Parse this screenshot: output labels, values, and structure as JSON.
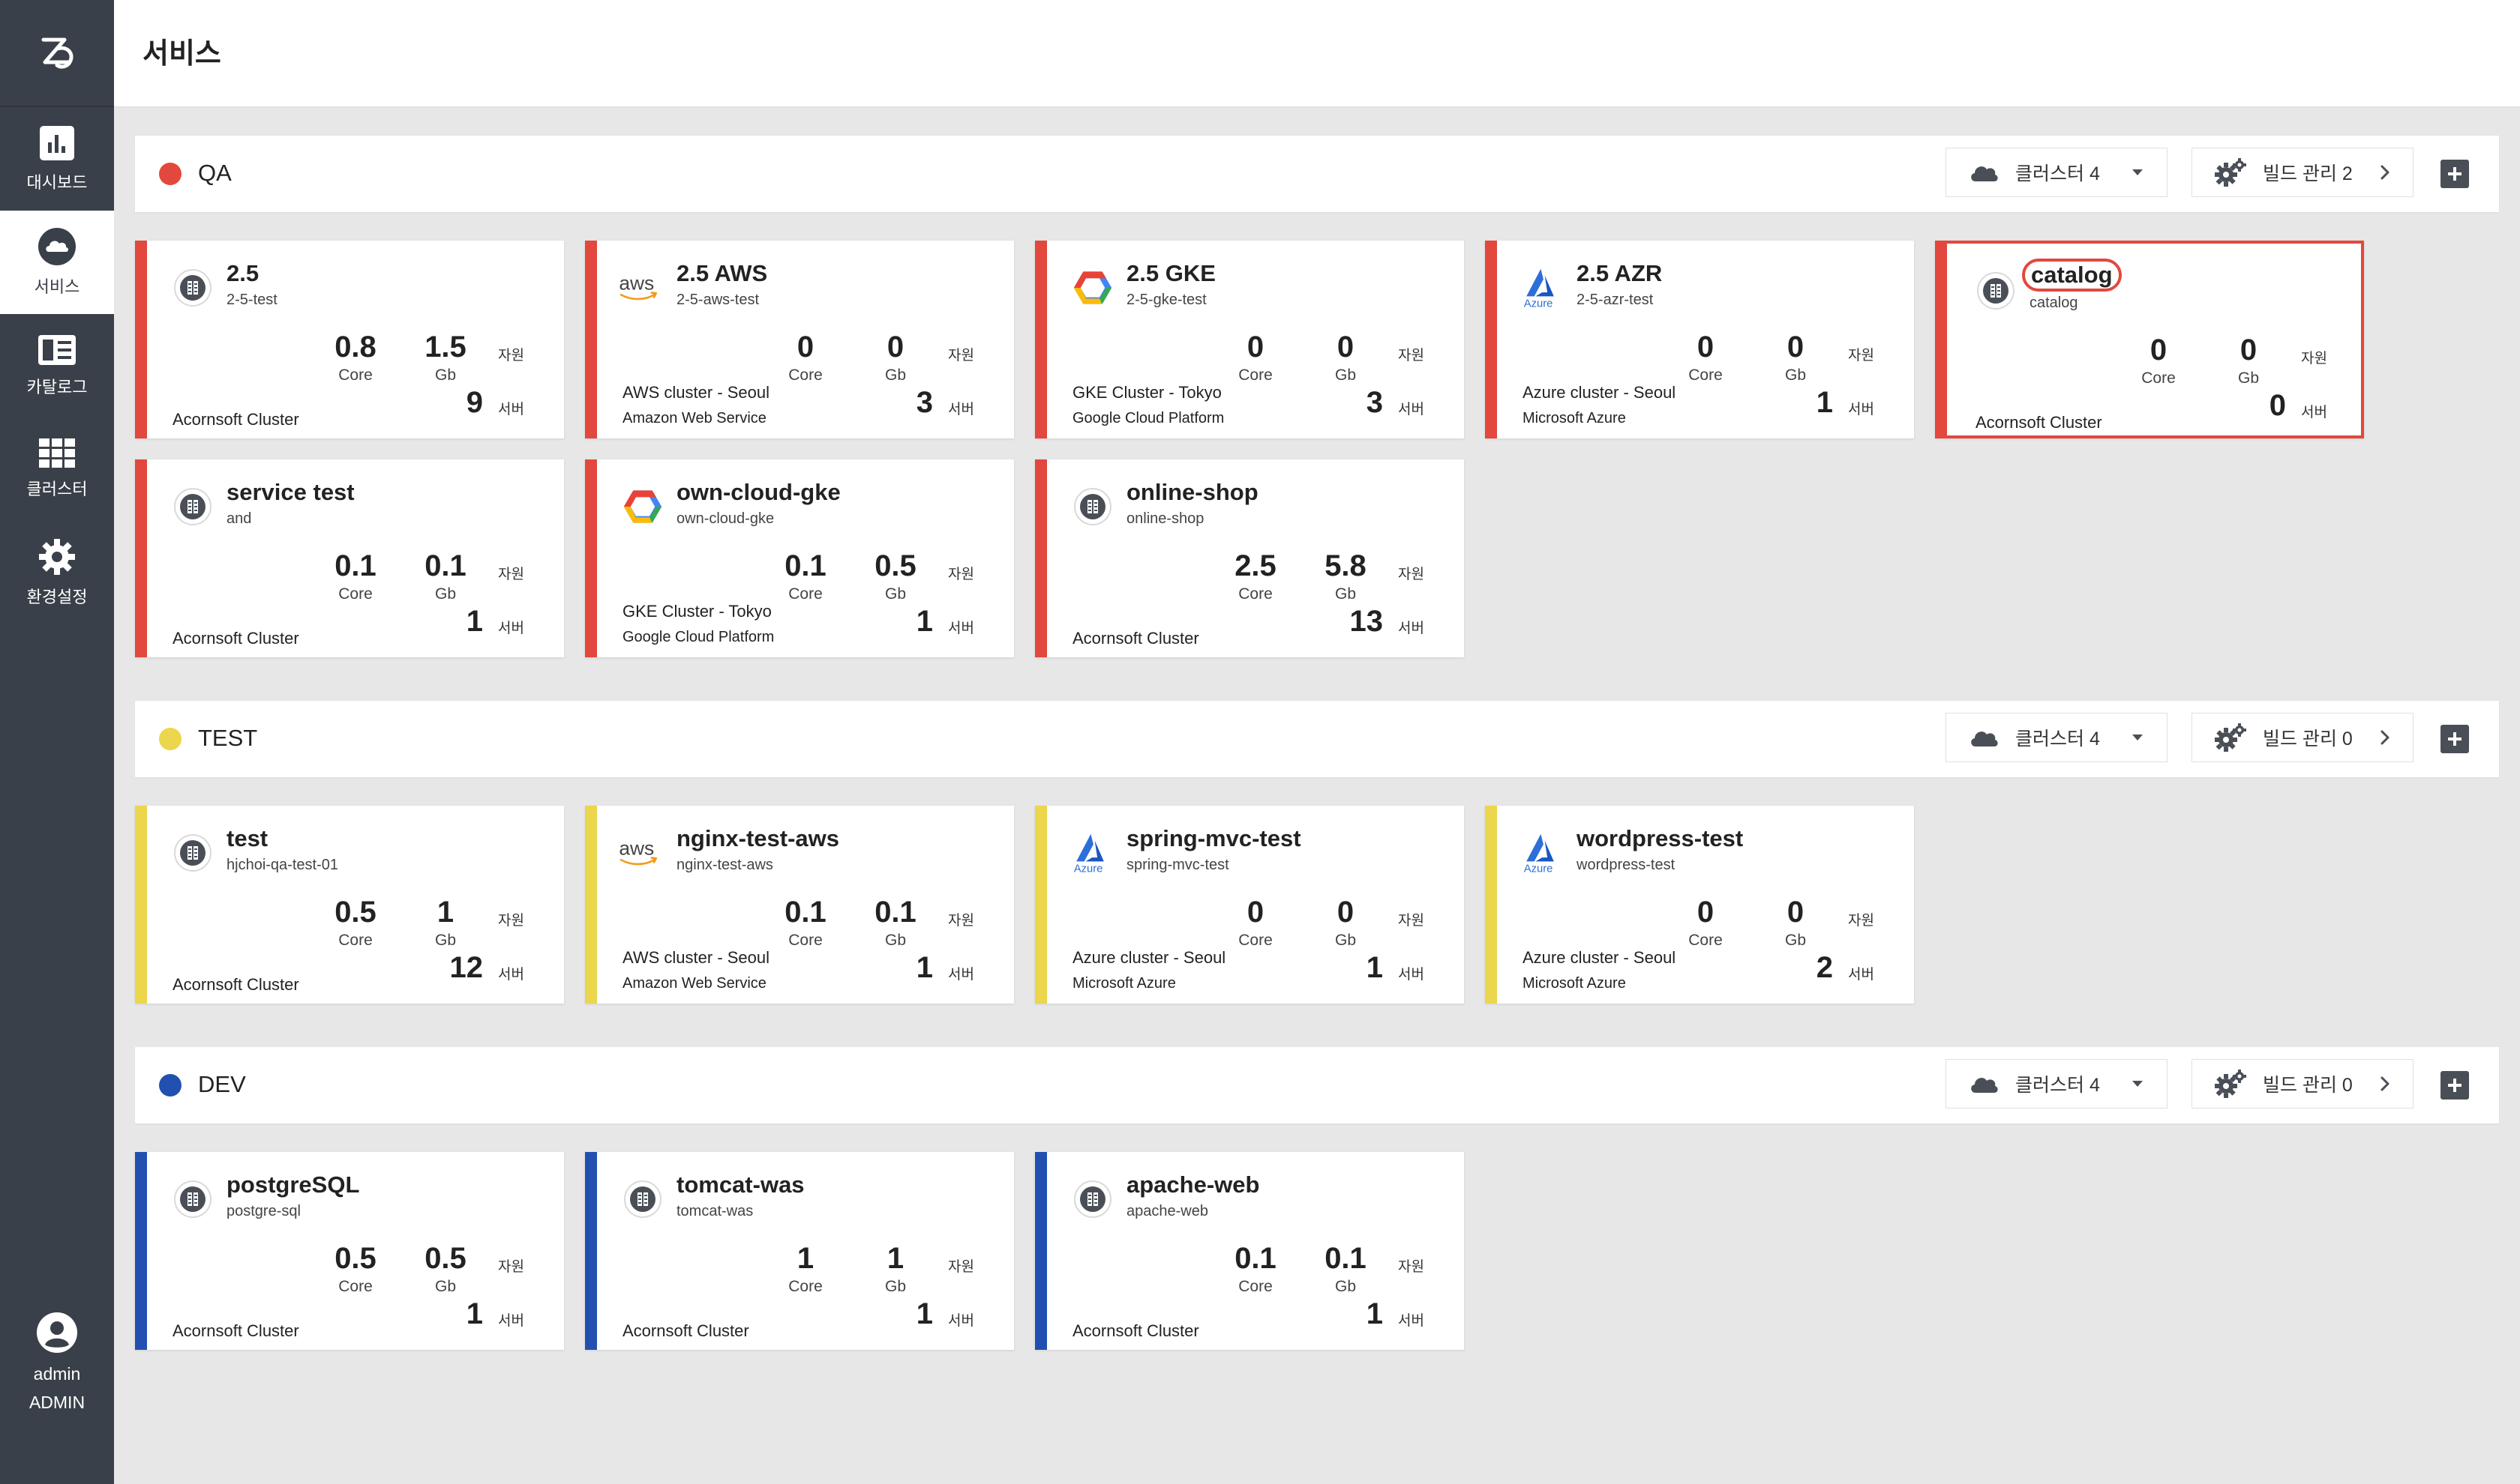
{
  "sidebar": {
    "items": [
      {
        "label": "대시보드",
        "icon": "bar-chart-icon"
      },
      {
        "label": "서비스",
        "icon": "cloud-icon"
      },
      {
        "label": "카탈로그",
        "icon": "catalog-icon"
      },
      {
        "label": "클러스터",
        "icon": "grid-icon"
      },
      {
        "label": "환경설정",
        "icon": "gear-icon"
      }
    ],
    "user": {
      "name": "admin",
      "role": "ADMIN"
    }
  },
  "header": {
    "title": "서비스"
  },
  "labels": {
    "core": "Core",
    "gb": "Gb",
    "resource": "자원",
    "server": "서버"
  },
  "colors": {
    "qa": "#e2483d",
    "test": "#ebd64c",
    "dev": "#2250b0"
  },
  "sections": [
    {
      "name": "QA",
      "cluster_label": "클러스터 4",
      "build_label": "빌드 관리 2",
      "cards": [
        {
          "name": "2.5",
          "id": "2-5-test",
          "core": "0.8",
          "gb": "1.5",
          "servers": "9",
          "cluster": "Acornsoft Cluster",
          "provider": "",
          "logo": "acornsoft"
        },
        {
          "name": "2.5 AWS",
          "id": "2-5-aws-test",
          "core": "0",
          "gb": "0",
          "servers": "3",
          "cluster": "AWS cluster - Seoul",
          "provider": "Amazon Web Service",
          "logo": "aws"
        },
        {
          "name": "2.5 GKE",
          "id": "2-5-gke-test",
          "core": "0",
          "gb": "0",
          "servers": "3",
          "cluster": "GKE Cluster - Tokyo",
          "provider": "Google Cloud Platform",
          "logo": "gcp"
        },
        {
          "name": "2.5 AZR",
          "id": "2-5-azr-test",
          "core": "0",
          "gb": "0",
          "servers": "1",
          "cluster": "Azure cluster - Seoul",
          "provider": "Microsoft Azure",
          "logo": "azure"
        },
        {
          "name": "catalog",
          "id": "catalog",
          "core": "0",
          "gb": "0",
          "servers": "0",
          "cluster": "Acornsoft Cluster",
          "provider": "",
          "logo": "acornsoft"
        },
        {
          "name": "service test",
          "id": "and",
          "core": "0.1",
          "gb": "0.1",
          "servers": "1",
          "cluster": "Acornsoft Cluster",
          "provider": "",
          "logo": "acornsoft"
        },
        {
          "name": "own-cloud-gke",
          "id": "own-cloud-gke",
          "core": "0.1",
          "gb": "0.5",
          "servers": "1",
          "cluster": "GKE Cluster - Tokyo",
          "provider": "Google Cloud Platform",
          "logo": "gcp"
        },
        {
          "name": "online-shop",
          "id": "online-shop",
          "core": "2.5",
          "gb": "5.8",
          "servers": "13",
          "cluster": "Acornsoft Cluster",
          "provider": "",
          "logo": "acornsoft"
        }
      ]
    },
    {
      "name": "TEST",
      "cluster_label": "클러스터 4",
      "build_label": "빌드 관리 0",
      "cards": [
        {
          "name": "test",
          "id": "hjchoi-qa-test-01",
          "core": "0.5",
          "gb": "1",
          "servers": "12",
          "cluster": "Acornsoft Cluster",
          "provider": "",
          "logo": "acornsoft"
        },
        {
          "name": "nginx-test-aws",
          "id": "nginx-test-aws",
          "core": "0.1",
          "gb": "0.1",
          "servers": "1",
          "cluster": "AWS cluster - Seoul",
          "provider": "Amazon Web Service",
          "logo": "aws"
        },
        {
          "name": "spring-mvc-test",
          "id": "spring-mvc-test",
          "core": "0",
          "gb": "0",
          "servers": "1",
          "cluster": "Azure cluster - Seoul",
          "provider": "Microsoft Azure",
          "logo": "azure"
        },
        {
          "name": "wordpress-test",
          "id": "wordpress-test",
          "core": "0",
          "gb": "0",
          "servers": "2",
          "cluster": "Azure cluster - Seoul",
          "provider": "Microsoft Azure",
          "logo": "azure"
        }
      ]
    },
    {
      "name": "DEV",
      "cluster_label": "클러스터 4",
      "build_label": "빌드 관리 0",
      "cards": [
        {
          "name": "postgreSQL",
          "id": "postgre-sql",
          "core": "0.5",
          "gb": "0.5",
          "servers": "1",
          "cluster": "Acornsoft Cluster",
          "provider": "",
          "logo": "acornsoft"
        },
        {
          "name": "tomcat-was",
          "id": "tomcat-was",
          "core": "1",
          "gb": "1",
          "servers": "1",
          "cluster": "Acornsoft Cluster",
          "provider": "",
          "logo": "acornsoft"
        },
        {
          "name": "apache-web",
          "id": "apache-web",
          "core": "0.1",
          "gb": "0.1",
          "servers": "1",
          "cluster": "Acornsoft Cluster",
          "provider": "",
          "logo": "acornsoft"
        }
      ]
    }
  ]
}
